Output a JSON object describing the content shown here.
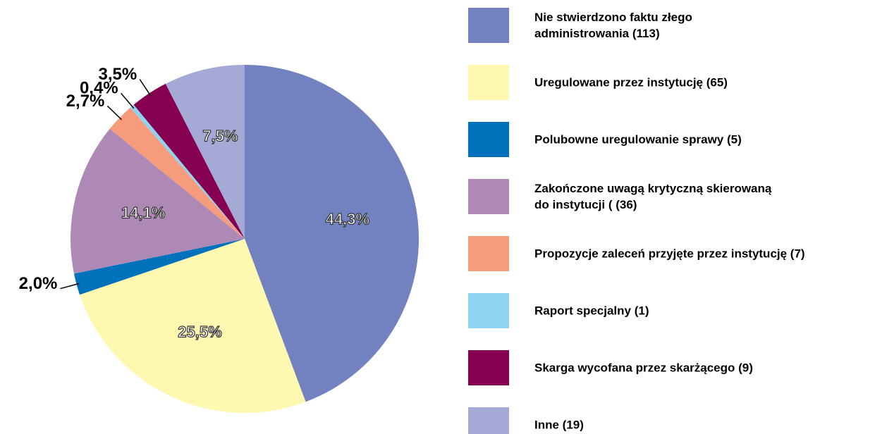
{
  "chart_data": {
    "type": "pie",
    "series": [
      {
        "name": "Nie stwierdzono faktu złego\nadministrowania (113)",
        "color": "#7281bf",
        "values": [
          44.3
        ],
        "value_labels": [
          "44,3%"
        ]
      },
      {
        "name": "Uregulowane przez instytucję (65)",
        "color": "#fff8b0",
        "values": [
          25.5
        ],
        "value_labels": [
          "25,5%"
        ]
      },
      {
        "name": "Polubowne uregulowanie sprawy (5)",
        "color": "#0072bc",
        "values": [
          2.0
        ],
        "value_labels": [
          "2,0%"
        ]
      },
      {
        "name": "Zakończone uwagą krytyczną skierowaną\ndo instytucji ( (36)",
        "color": "#ae89b6",
        "values": [
          14.1
        ],
        "value_labels": [
          "14,1%"
        ]
      },
      {
        "name": "Propozycje zaleceń przyjęte przez instytucję (7)",
        "color": "#f69b7b",
        "values": [
          2.7
        ],
        "value_labels": [
          "2,7%"
        ]
      },
      {
        "name": "Raport specjalny (1)",
        "color": "#8dd4f3",
        "values": [
          0.4
        ],
        "value_labels": [
          "0,4%"
        ]
      },
      {
        "name": "Skarga wycofana przez skarżącego (9)",
        "color": "#860051",
        "values": [
          3.5
        ],
        "value_labels": [
          "3,5%"
        ]
      },
      {
        "name": "Inne (19)",
        "color": "#a5a9d6",
        "values": [
          7.5
        ],
        "value_labels": [
          "7,5%"
        ]
      }
    ],
    "legend": "right"
  }
}
